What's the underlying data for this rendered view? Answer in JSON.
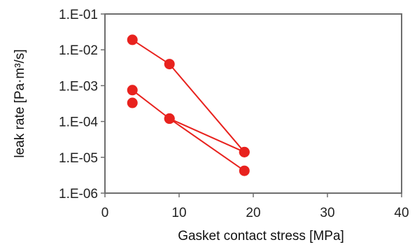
{
  "chart_data": {
    "type": "line",
    "xlabel": "Gasket contact stress [MPa]",
    "ylabel": "leak rate [Pa·m³/s]",
    "xlim": [
      0,
      40
    ],
    "ylim": [
      1e-06,
      0.1
    ],
    "y_scale": "log",
    "x_ticks": [
      "0",
      "10",
      "20",
      "30",
      "40"
    ],
    "y_ticks": [
      "1.E-06",
      "1.E-05",
      "1.E-04",
      "1.E-03",
      "1.E-02",
      "1.E-01"
    ],
    "grid": false,
    "colors": {
      "series": "#e8221e"
    },
    "series": [
      {
        "x": [
          3.7,
          8.7,
          18.8
        ],
        "y": [
          0.019,
          0.004,
          1.4e-05
        ]
      },
      {
        "x": [
          3.7,
          8.7,
          18.8
        ],
        "y": [
          0.00075,
          0.00012,
          4.2e-06
        ]
      },
      {
        "x": [
          3.7
        ],
        "y": [
          0.00033
        ]
      },
      {
        "x": [
          8.7,
          18.8
        ],
        "y": [
          0.00012,
          1.4e-05
        ]
      }
    ]
  }
}
